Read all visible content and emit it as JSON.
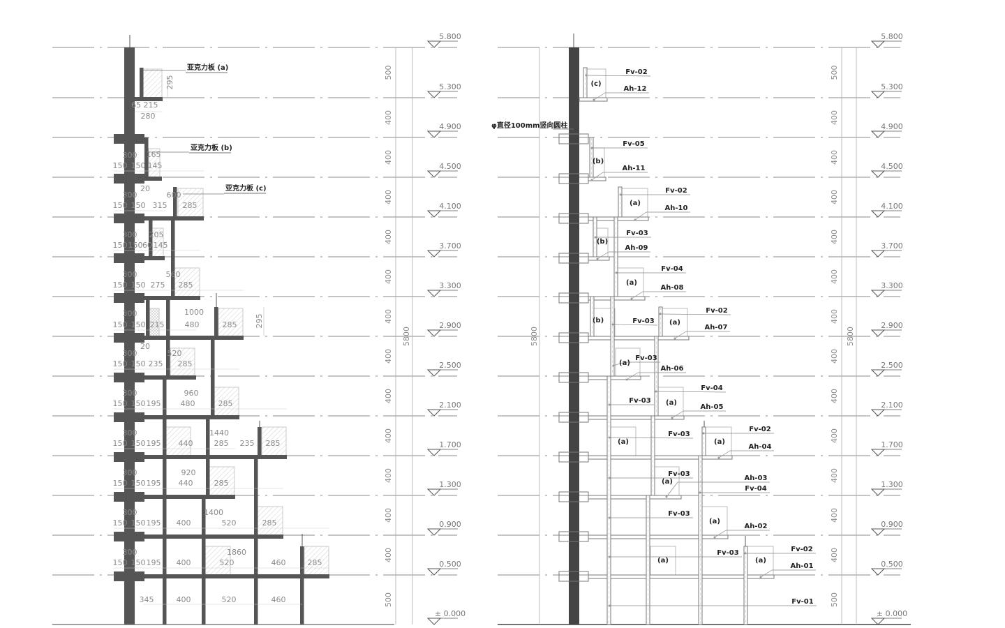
{
  "levels": [
    "5.800",
    "5.300",
    "4.900",
    "4.500",
    "4.100",
    "3.700",
    "3.300",
    "2.900",
    "2.500",
    "2.100",
    "1.700",
    "1.300",
    "0.900",
    "0.500",
    "± 0.000"
  ],
  "segment_dims": [
    "500",
    "400",
    "400",
    "400",
    "400",
    "400",
    "400",
    "400",
    "400",
    "400",
    "400",
    "400",
    "400",
    "500"
  ],
  "left": {
    "callouts": [
      "亚克力板 (a)",
      "亚克力板 (b)",
      "亚克力板 (c)"
    ],
    "total": "5800",
    "dims": [
      "295",
      "65",
      "215",
      "280",
      "300",
      "150",
      "150",
      "165",
      "145",
      "20",
      "300",
      "150",
      "150",
      "315",
      "600",
      "285",
      "300",
      "150",
      "150",
      "60",
      "205",
      "145",
      "300",
      "150",
      "150",
      "275",
      "560",
      "285",
      "300",
      "150",
      "150",
      "215",
      "1000",
      "480",
      "285",
      "295",
      "20",
      "300",
      "150",
      "150",
      "235",
      "520",
      "285",
      "300",
      "150",
      "150",
      "195",
      "960",
      "480",
      "285",
      "300",
      "150",
      "150",
      "195",
      "440",
      "1440",
      "285",
      "235",
      "285",
      "300",
      "150",
      "150",
      "195",
      "920",
      "440",
      "285",
      "300",
      "150",
      "150",
      "195",
      "400",
      "1400",
      "520",
      "285",
      "300",
      "150",
      "150",
      "195",
      "400",
      "1860",
      "520",
      "460",
      "285",
      "345",
      "400",
      "520",
      "460"
    ]
  },
  "right": {
    "column_note": "φ直径100mm竖向圆柱",
    "total_left": "5800",
    "total_right": "5800",
    "tags": [
      "Fv-02",
      "(c)",
      "Ah-12",
      "Fv-05",
      "(b)",
      "Ah-11",
      "Fv-02",
      "(a)",
      "Ah-10",
      "Fv-03",
      "(b)",
      "Ah-09",
      "Fv-04",
      "(a)",
      "Ah-08",
      "(b)",
      "Fv-03",
      "(a)",
      "Fv-02",
      "Ah-07",
      "(a)",
      "Fv-03",
      "Ah-06",
      "Fv-04",
      "Fv-03",
      "(a)",
      "Ah-05",
      "(a)",
      "Fv-03",
      "(a)",
      "Fv-02",
      "Ah-04",
      "Fv-03",
      "(a)",
      "Ah-03",
      "Fv-04",
      "Fv-03",
      "(a)",
      "Ah-02",
      "(a)",
      "Fv-03",
      "(a)",
      "Fv-02",
      "Ah-01",
      "Fv-01"
    ]
  },
  "colors": {
    "structure": "#555555",
    "column": "#444444",
    "grid": "#8a8a8a",
    "hatch": "#bbbbbb"
  }
}
